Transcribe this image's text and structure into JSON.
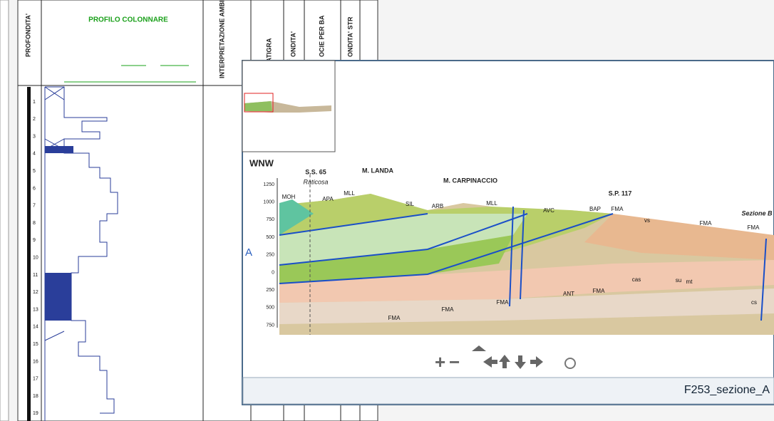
{
  "log_document": {
    "headers": {
      "depth": "PROFONDITA'",
      "profile": "PROFILO COLONNARE",
      "environment": "INTERPRETAZIONE AMBIENTALE",
      "stratigraphy": "' STRATIGRA",
      "depth2": "ONDITA'",
      "species": "OCIE PER BA",
      "stratigraphy2": "ONDITA' STR"
    },
    "depth_labels": [
      1,
      2,
      3,
      4,
      5,
      6,
      7,
      8,
      9,
      10,
      11,
      12,
      13,
      14,
      15,
      16,
      17,
      18,
      19
    ]
  },
  "viewer": {
    "section_title": "WNW",
    "endpoint": "A",
    "elevation_ticks": [
      1250,
      1000,
      750,
      500,
      250,
      0,
      250,
      500,
      750
    ],
    "places": [
      "S.S. 65",
      "Raticosa",
      "M. LANDA",
      "M. CARPINACCIO",
      "S.P. 117",
      "Sezione B"
    ],
    "units": [
      "MOH",
      "APA",
      "MLL",
      "SIL",
      "ARB",
      "MLL",
      "AVC",
      "BAP",
      "FMA",
      "vs",
      "FMA",
      "FMA",
      "cas",
      "su",
      "mt",
      "ANT",
      "FMA",
      "FMA",
      "FMA",
      "FMA",
      "cs"
    ],
    "footer": "F253_sezione_A"
  }
}
